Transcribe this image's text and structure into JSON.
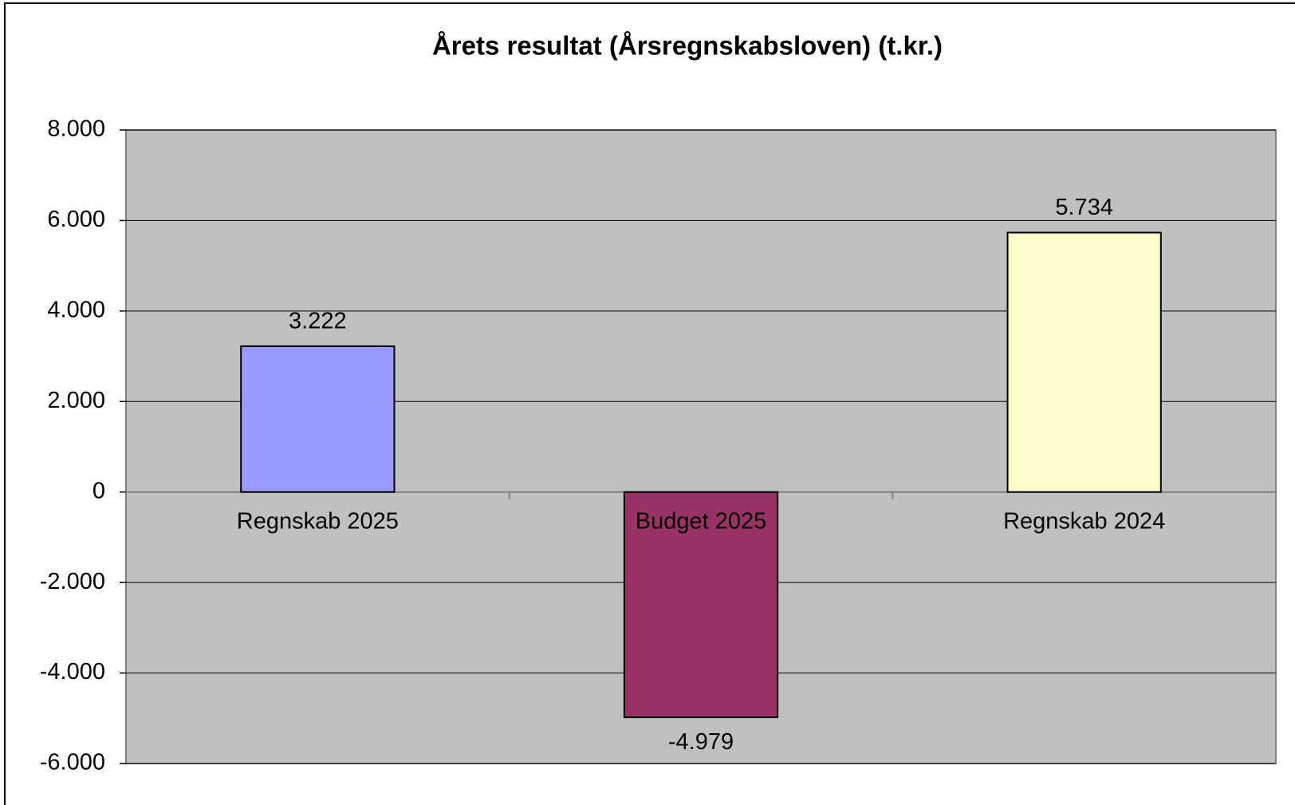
{
  "chart_data": {
    "type": "bar",
    "title": "Årets resultat (Årsregnskabsloven)  (t.kr.)",
    "categories": [
      "Regnskab 2025",
      "Budget 2025",
      "Regnskab 2024"
    ],
    "values": [
      3222,
      -4979,
      5734
    ],
    "value_labels": [
      "3.222",
      "-4.979",
      "5.734"
    ],
    "colors": [
      "#9999ff",
      "#993366",
      "#ffffcc"
    ],
    "ylim": [
      -6000,
      8000
    ],
    "yticks": [
      {
        "value": -6000,
        "label": "-6.000"
      },
      {
        "value": -4000,
        "label": "-4.000"
      },
      {
        "value": -2000,
        "label": "-2.000"
      },
      0,
      {
        "value": 2000,
        "label": "2.000"
      },
      {
        "value": 4000,
        "label": "4.000"
      },
      {
        "value": 6000,
        "label": "6.000"
      },
      {
        "value": 8000,
        "label": "8.000"
      }
    ],
    "grid": true
  }
}
